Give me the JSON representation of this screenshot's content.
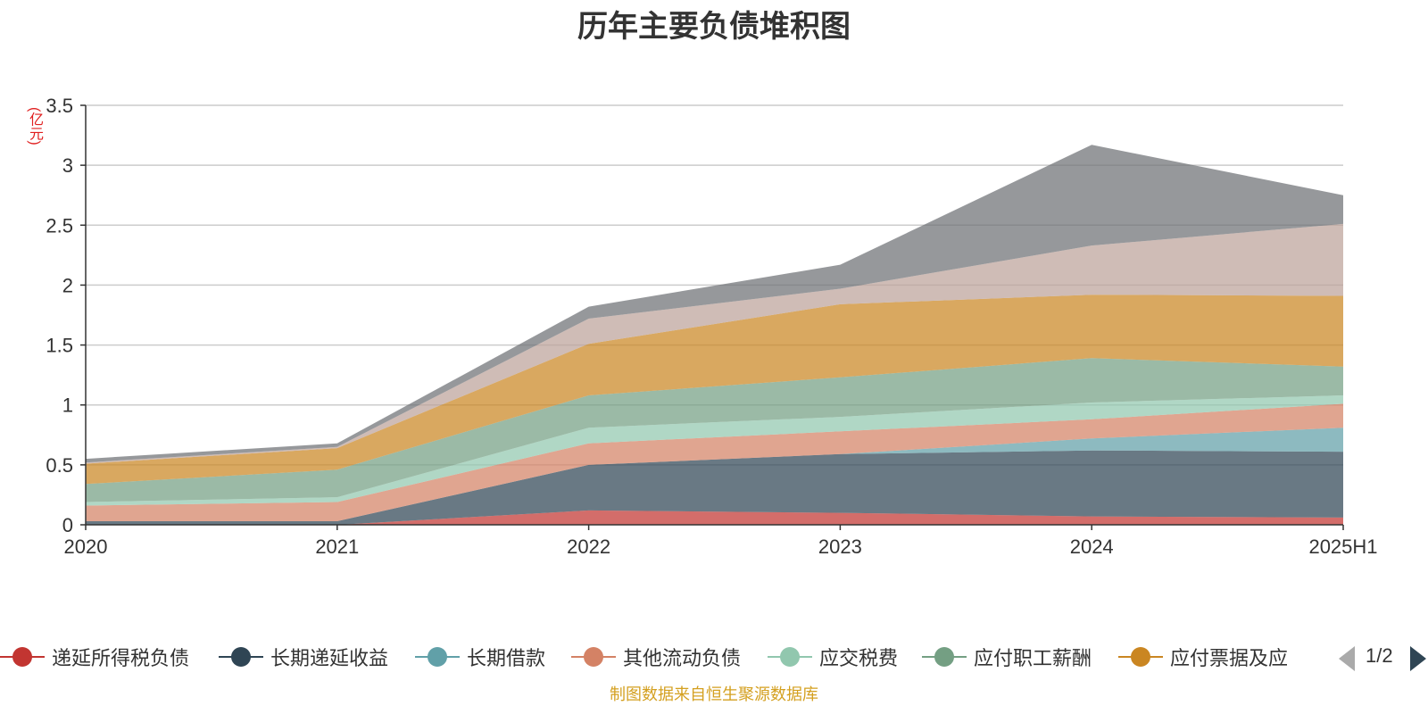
{
  "chart_data": {
    "type": "area",
    "stacked": true,
    "title": "历年主要负债堆积图",
    "ylabel": "(亿元)",
    "xlabel": "",
    "categories": [
      "2020",
      "2021",
      "2022",
      "2023",
      "2024",
      "2025H1"
    ],
    "y_ticks": [
      "0",
      "0.5",
      "1",
      "1.5",
      "2",
      "2.5",
      "3",
      "3.5"
    ],
    "ylim": [
      0,
      3.5
    ],
    "grid": true,
    "legend_position": "bottom",
    "legend_page": "1/2",
    "series": [
      {
        "name": "递延所得税负债",
        "color": "#c23531",
        "values": [
          0,
          0,
          0.12,
          0.1,
          0.07,
          0.06
        ]
      },
      {
        "name": "长期递延收益",
        "color": "#2f4554",
        "values": [
          0.03,
          0.03,
          0.38,
          0.49,
          0.55,
          0.55
        ]
      },
      {
        "name": "长期借款",
        "color": "#61a0a8",
        "values": [
          0,
          0,
          0,
          0,
          0.1,
          0.2
        ]
      },
      {
        "name": "其他流动负债",
        "color": "#d48265",
        "values": [
          0.13,
          0.16,
          0.18,
          0.19,
          0.16,
          0.2
        ]
      },
      {
        "name": "应交税费",
        "color": "#91c7ae",
        "values": [
          0.03,
          0.04,
          0.13,
          0.12,
          0.14,
          0.07
        ]
      },
      {
        "name": "应付职工薪酬",
        "color": "#749f83",
        "values": [
          0.15,
          0.23,
          0.27,
          0.33,
          0.37,
          0.24
        ]
      },
      {
        "name": "",
        "color": "#ca8622",
        "values": [
          0.17,
          0.18,
          0.43,
          0.61,
          0.53,
          0.59
        ]
      },
      {
        "name": "",
        "color": "#bda29a",
        "values": [
          0.01,
          0.01,
          0.21,
          0.13,
          0.41,
          0.6
        ]
      },
      {
        "name": "",
        "color": "#6e7074",
        "values": [
          0.03,
          0.03,
          0.1,
          0.2,
          0.84,
          0.24
        ]
      }
    ],
    "visible_legend": [
      {
        "label": "递延所得税负债",
        "color": "#c23531"
      },
      {
        "label": "长期递延收益",
        "color": "#2f4554"
      },
      {
        "label": "长期借款",
        "color": "#61a0a8"
      },
      {
        "label": "其他流动负债",
        "color": "#d48265"
      },
      {
        "label": "应交税费",
        "color": "#91c7ae"
      },
      {
        "label": "应付职工薪酬",
        "color": "#749f83"
      },
      {
        "label": "应付票据及应",
        "color": "#ca8622"
      }
    ],
    "source_note": "制图数据来自恒生聚源数据库"
  }
}
